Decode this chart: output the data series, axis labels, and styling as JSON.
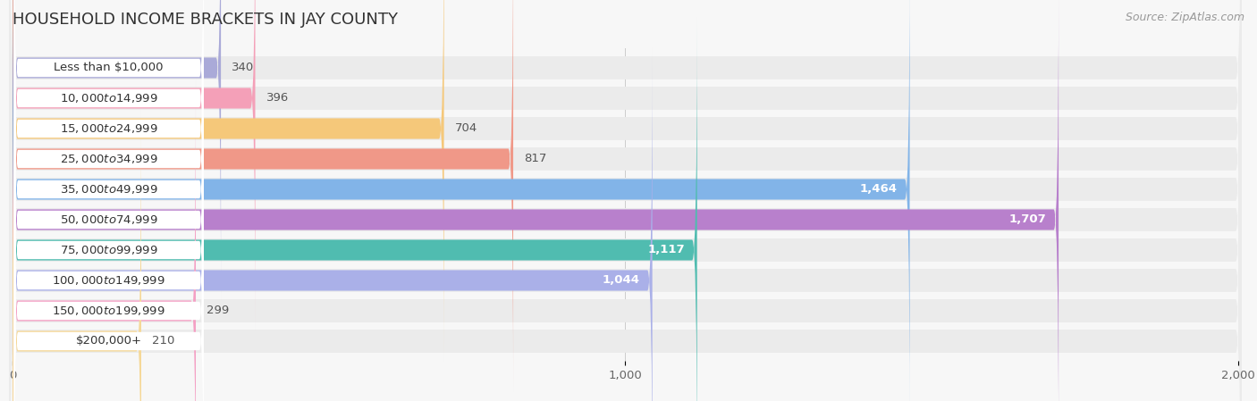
{
  "title": "HOUSEHOLD INCOME BRACKETS IN JAY COUNTY",
  "source": "Source: ZipAtlas.com",
  "categories": [
    "Less than $10,000",
    "$10,000 to $14,999",
    "$15,000 to $24,999",
    "$25,000 to $34,999",
    "$35,000 to $49,999",
    "$50,000 to $74,999",
    "$75,000 to $99,999",
    "$100,000 to $149,999",
    "$150,000 to $199,999",
    "$200,000+"
  ],
  "values": [
    340,
    396,
    704,
    817,
    1464,
    1707,
    1117,
    1044,
    299,
    210
  ],
  "bar_colors": [
    "#aaaad8",
    "#f4a0b8",
    "#f5c87a",
    "#f09888",
    "#82b4e8",
    "#b880cc",
    "#50bcb0",
    "#aab0e8",
    "#f4a0c4",
    "#f5d898"
  ],
  "xlim": [
    0,
    2000
  ],
  "xticks": [
    0,
    1000,
    2000
  ],
  "xticklabels": [
    "0",
    "1,000",
    "2,000"
  ],
  "background_color": "#f7f7f7",
  "row_bg_color": "#ebebeb",
  "title_fontsize": 13,
  "label_fontsize": 9.5,
  "value_fontsize": 9.5,
  "source_fontsize": 9
}
